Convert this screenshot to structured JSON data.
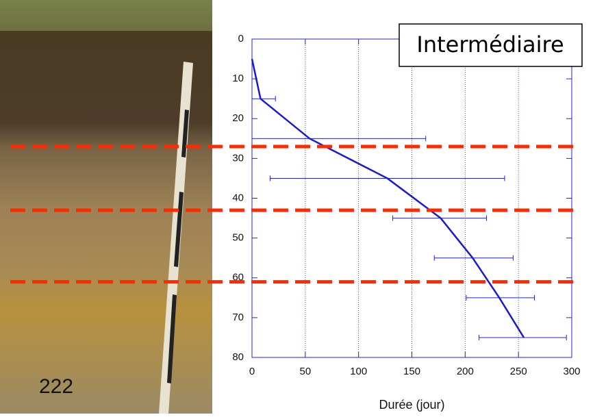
{
  "photo_label": "222",
  "chart_data": {
    "type": "line",
    "title": "Intermédiaire",
    "xlabel": "Durée (jour)",
    "xlim": [
      0,
      300
    ],
    "xticks": [
      0,
      50,
      100,
      150,
      200,
      250,
      300
    ],
    "ylim": [
      0,
      80
    ],
    "yticks": [
      0,
      10,
      20,
      30,
      40,
      50,
      60,
      70,
      80
    ],
    "y_inverted": true,
    "grid": "x",
    "axis_color": "#2020e0",
    "series": [
      {
        "color": "#1a1ad6",
        "x": [
          0,
          8,
          54,
          127,
          177,
          207,
          232,
          255
        ],
        "y": [
          5,
          15,
          25,
          35,
          45,
          55,
          65,
          75
        ]
      }
    ],
    "error_bars": {
      "y": [
        15,
        25,
        35,
        45,
        55,
        65,
        75
      ],
      "low": [
        0,
        0,
        17,
        132,
        171,
        201,
        213
      ],
      "high": [
        22,
        163,
        237,
        220,
        245,
        265,
        295
      ]
    },
    "horizon_lines": {
      "y": [
        27,
        43,
        61
      ],
      "color": "#ff2a00"
    }
  }
}
